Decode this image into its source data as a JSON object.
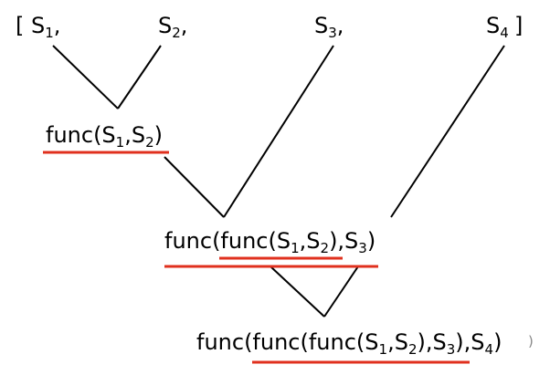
{
  "colors": {
    "text": "#000000",
    "line": "#000000",
    "underline": "#e0301e"
  },
  "sequence": {
    "open_bracket": "[",
    "close_bracket": "]",
    "items": [
      {
        "base": "S",
        "sub": "1",
        "suffix": ","
      },
      {
        "base": "S",
        "sub": "2",
        "suffix": ","
      },
      {
        "base": "S",
        "sub": "3",
        "suffix": ","
      },
      {
        "base": "S",
        "sub": "4",
        "suffix": ""
      }
    ]
  },
  "steps": [
    {
      "parts": [
        {
          "t": "func(S"
        },
        {
          "s": "1"
        },
        {
          "t": ",S"
        },
        {
          "s": "2"
        },
        {
          "t": ")"
        }
      ]
    },
    {
      "parts": [
        {
          "t": "func(func(S"
        },
        {
          "s": "1"
        },
        {
          "t": ",S"
        },
        {
          "s": "2"
        },
        {
          "t": "),S"
        },
        {
          "s": "3"
        },
        {
          "t": ")"
        }
      ]
    },
    {
      "parts": [
        {
          "t": "func(func(func(S"
        },
        {
          "s": "1"
        },
        {
          "t": ",S"
        },
        {
          "s": "2"
        },
        {
          "t": "),S"
        },
        {
          "s": "3"
        },
        {
          "t": "),S"
        },
        {
          "s": "4"
        },
        {
          "t": ")"
        }
      ]
    }
  ],
  "stray_mark": ")"
}
